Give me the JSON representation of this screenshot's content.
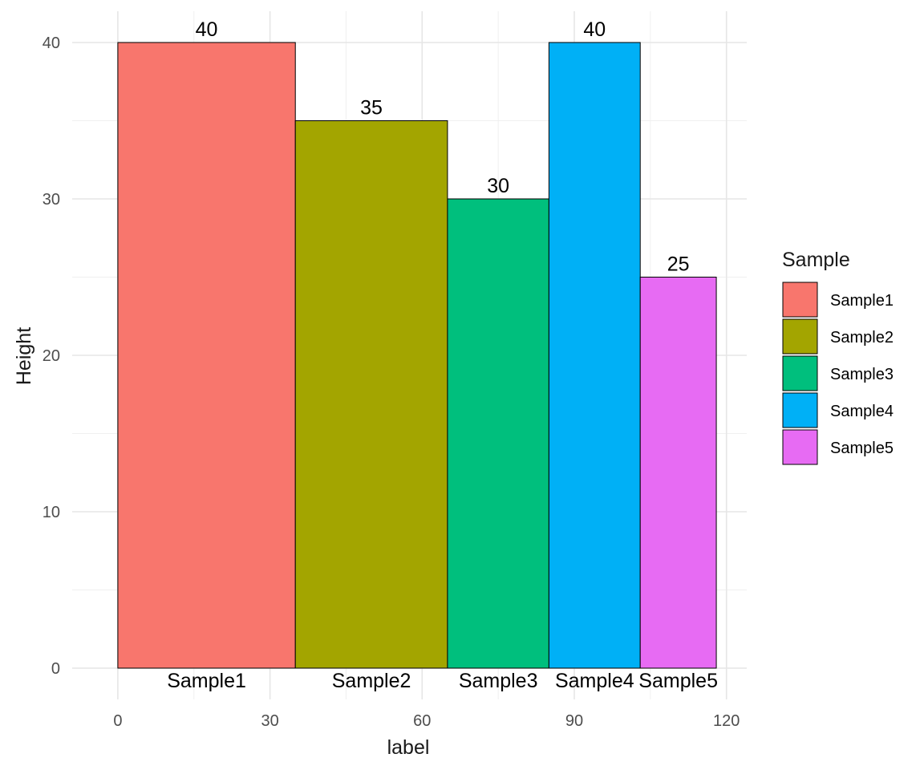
{
  "chart_data": {
    "type": "bar",
    "variable_width": true,
    "xlabel": "label",
    "ylabel": "Height",
    "xlim": [
      -9,
      124
    ],
    "ylim": [
      -2,
      42
    ],
    "x_ticks": [
      0,
      30,
      60,
      90,
      120
    ],
    "y_ticks": [
      0,
      10,
      20,
      30,
      40
    ],
    "x_minor": [
      15,
      45,
      75,
      105
    ],
    "y_minor": [
      5,
      15,
      25,
      35
    ],
    "x_tick_labels": [
      "0",
      "30",
      "60",
      "90",
      "120"
    ],
    "y_tick_labels": [
      "0",
      "10",
      "20",
      "30",
      "40"
    ],
    "grid": true,
    "legend": {
      "title": "Sample",
      "placement": "right"
    },
    "bars": [
      {
        "name": "Sample1",
        "xmin": 0,
        "xmax": 35,
        "value": 40,
        "value_label": "40",
        "color": "#F8766D"
      },
      {
        "name": "Sample2",
        "xmin": 35,
        "xmax": 65,
        "value": 35,
        "value_label": "35",
        "color": "#A3A500"
      },
      {
        "name": "Sample3",
        "xmin": 65,
        "xmax": 85,
        "value": 30,
        "value_label": "30",
        "color": "#00BF7D"
      },
      {
        "name": "Sample4",
        "xmin": 85,
        "xmax": 103,
        "value": 40,
        "value_label": "40",
        "color": "#00B0F6"
      },
      {
        "name": "Sample5",
        "xmin": 103,
        "xmax": 118,
        "value": 25,
        "value_label": "25",
        "color": "#E76BF3"
      }
    ]
  }
}
